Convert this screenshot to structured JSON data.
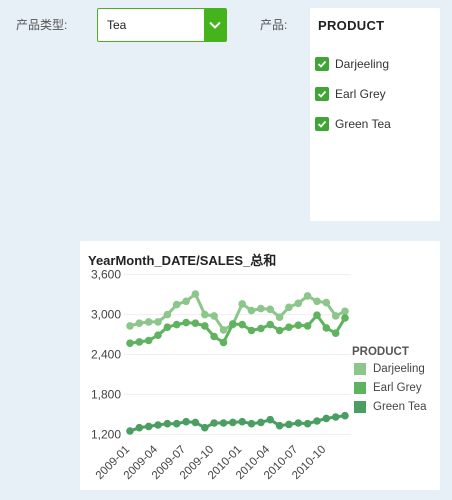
{
  "filters": {
    "type_label": "产品类型:",
    "type_value": "Tea",
    "product_label": "产品:"
  },
  "product_panel": {
    "title": "PRODUCT",
    "items": [
      {
        "label": "Darjeeling",
        "checked": true
      },
      {
        "label": "Earl Grey",
        "checked": true
      },
      {
        "label": "Green Tea",
        "checked": true
      }
    ]
  },
  "icons": {
    "dropdown_arrow": "chevron-down-icon",
    "check": "checkmark-icon"
  },
  "colors": {
    "accent": "#45b31c",
    "checkbox": "#3fa535",
    "darjeeling": "#8cc68a",
    "earl_grey": "#5fb35f",
    "green_tea": "#4a9e62"
  },
  "chart_data": {
    "type": "line",
    "title": "YearMonth_DATE/SALES_总和",
    "xlabel": "",
    "ylabel": "",
    "ylim": [
      1100,
      3700
    ],
    "yticks": [
      "1,200",
      "1,800",
      "2,400",
      "3,000",
      "3,600"
    ],
    "ytick_values": [
      1200,
      1800,
      2400,
      3000,
      3600
    ],
    "categories": [
      "2009-01",
      "2009-02",
      "2009-03",
      "2009-04",
      "2009-05",
      "2009-06",
      "2009-07",
      "2009-08",
      "2009-09",
      "2009-10",
      "2009-11",
      "2009-12",
      "2010-01",
      "2010-02",
      "2010-03",
      "2010-04",
      "2010-05",
      "2010-06",
      "2010-07",
      "2010-08",
      "2010-09",
      "2010-10",
      "2010-11",
      "2010-12"
    ],
    "xtick_labels": [
      "2009-01",
      "2009-04",
      "2009-07",
      "2009-10",
      "2010-01",
      "2010-04",
      "2010-07",
      "2010-10"
    ],
    "legend_title": "PRODUCT",
    "legend_position": "right",
    "grid": true,
    "series": [
      {
        "name": "Darjeeling",
        "color": "#8cc68a",
        "values": [
          2830,
          2870,
          2890,
          2890,
          3000,
          3150,
          3200,
          3310,
          3000,
          2980,
          2770,
          2850,
          3160,
          3060,
          3090,
          3080,
          2960,
          3110,
          3170,
          3280,
          3200,
          3180,
          2980,
          3050
        ]
      },
      {
        "name": "Earl Grey",
        "color": "#5fb35f",
        "values": [
          2570,
          2590,
          2610,
          2690,
          2810,
          2850,
          2880,
          2870,
          2830,
          2670,
          2580,
          2860,
          2850,
          2760,
          2790,
          2850,
          2760,
          2810,
          2840,
          2830,
          2990,
          2800,
          2720,
          2950
        ]
      },
      {
        "name": "Green Tea",
        "color": "#4a9e62",
        "values": [
          1250,
          1300,
          1320,
          1340,
          1360,
          1360,
          1390,
          1380,
          1300,
          1370,
          1370,
          1380,
          1390,
          1360,
          1380,
          1420,
          1330,
          1350,
          1370,
          1360,
          1400,
          1440,
          1460,
          1480
        ]
      }
    ]
  }
}
